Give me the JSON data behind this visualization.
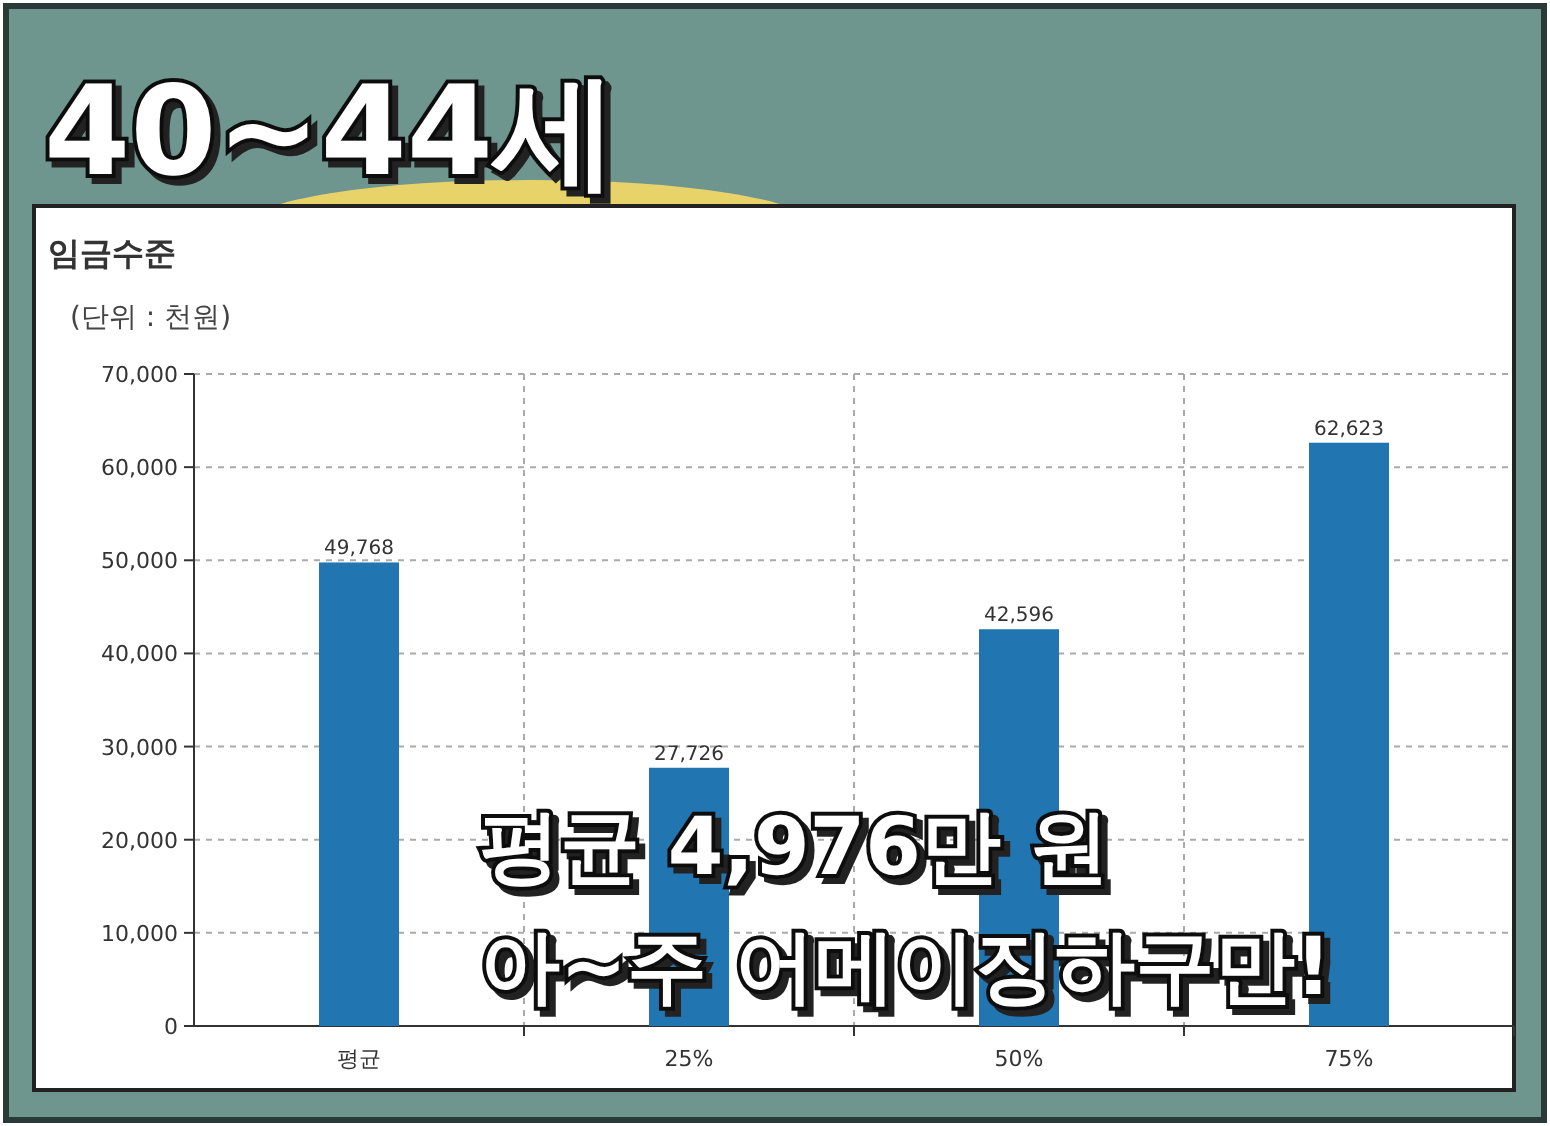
{
  "chart_data": {
    "type": "bar",
    "title": "40~44세",
    "subtitle": "임금수준",
    "ylabel": "(단위 : 천원)",
    "categories": [
      "평균",
      "25%",
      "50%",
      "75%"
    ],
    "values": [
      49768,
      27726,
      42596,
      62623
    ],
    "value_labels": [
      "49,768",
      "27,726",
      "42,596",
      "62,623"
    ],
    "color": "#2176b2",
    "ylim": [
      0,
      70000
    ],
    "yticks": [
      {
        "value": 0,
        "label": "0"
      },
      {
        "value": 10000,
        "label": "10,000"
      },
      {
        "value": 20000,
        "label": "20,000"
      },
      {
        "value": 30000,
        "label": "30,000"
      },
      {
        "value": 40000,
        "label": "40,000"
      },
      {
        "value": 50000,
        "label": "50,000"
      },
      {
        "value": 60000,
        "label": "60,000"
      },
      {
        "value": 70000,
        "label": "70,000"
      }
    ],
    "grid": true,
    "annotations": [
      "평균 4,976만 원",
      "아~주 어메이징하구만!"
    ]
  }
}
